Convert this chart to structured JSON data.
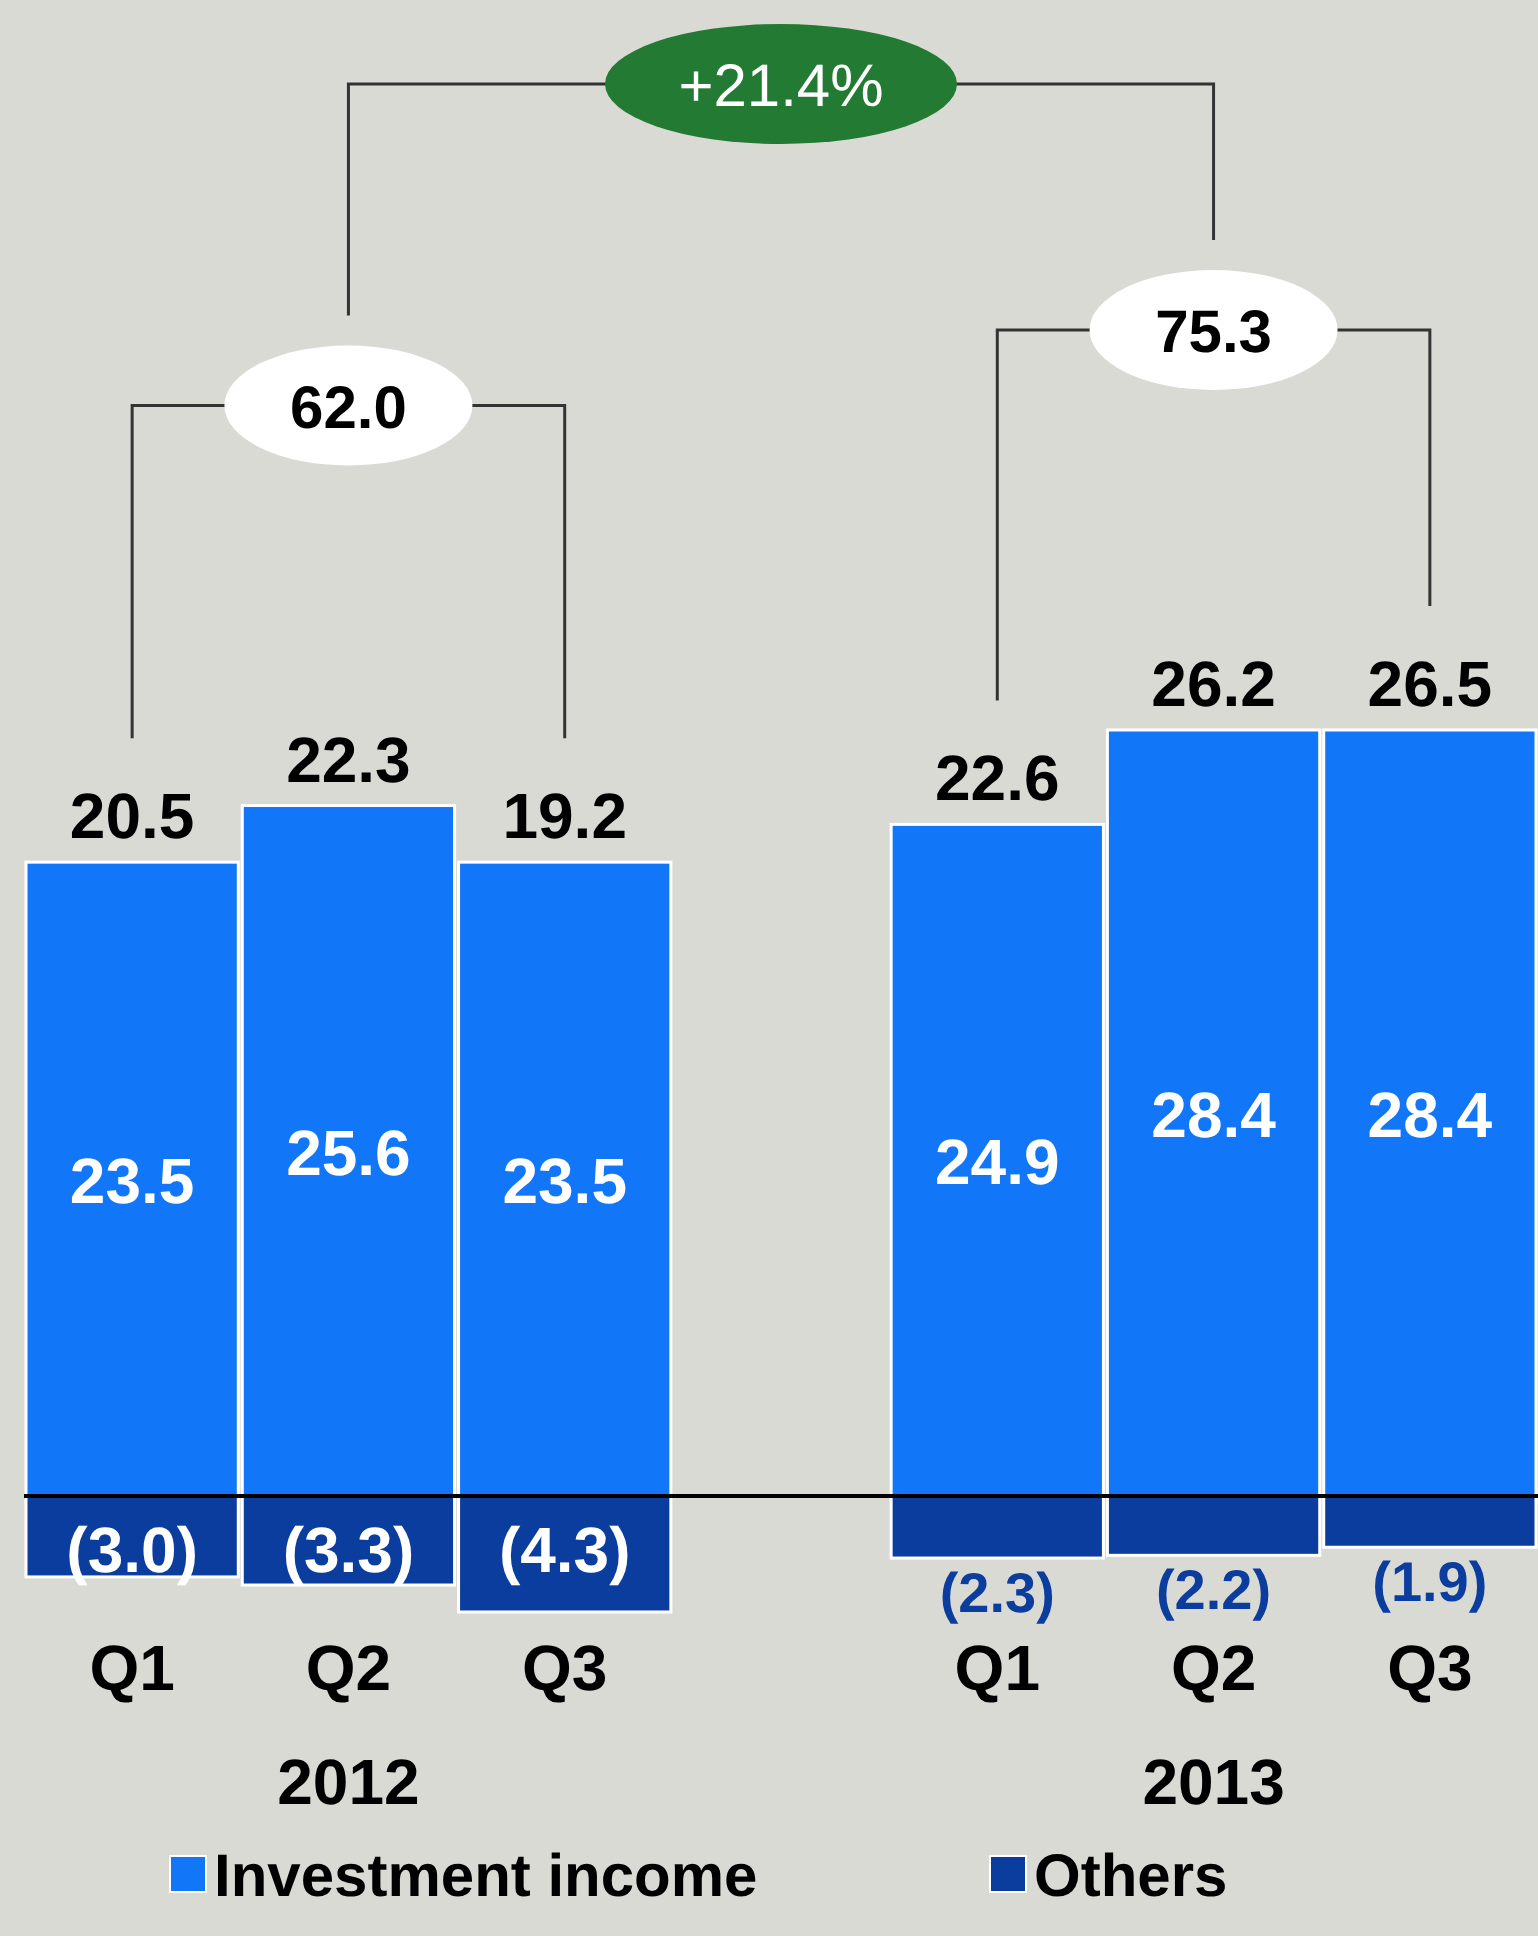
{
  "chart_data": {
    "type": "bar",
    "stacked": true,
    "categories": [
      "Q1",
      "Q2",
      "Q3",
      null,
      "Q1",
      "Q2",
      "Q3"
    ],
    "series": [
      {
        "name": "Investment income",
        "color": "#1177f8",
        "values": [
          23.5,
          25.6,
          23.5,
          null,
          24.9,
          28.4,
          28.4
        ],
        "value_labels": [
          "23.5",
          "25.6",
          "23.5",
          null,
          "24.9",
          "28.4",
          "28.4"
        ]
      },
      {
        "name": "Others",
        "color": "#0b3d9e",
        "values": [
          -3.0,
          -3.3,
          -4.3,
          null,
          -2.3,
          -2.2,
          -1.9
        ],
        "value_labels": [
          "(3.0)",
          "(3.3)",
          "(4.3)",
          null,
          "(2.3)",
          "(2.2)",
          "(1.9)"
        ]
      }
    ],
    "totals": [
      "20.5",
      "22.3",
      "19.2",
      null,
      "22.6",
      "26.2",
      "26.5"
    ],
    "annotations": [
      "62.0",
      "75.3",
      "+21.4%",
      "2012",
      "2013"
    ],
    "legend": "bottom"
  }
}
